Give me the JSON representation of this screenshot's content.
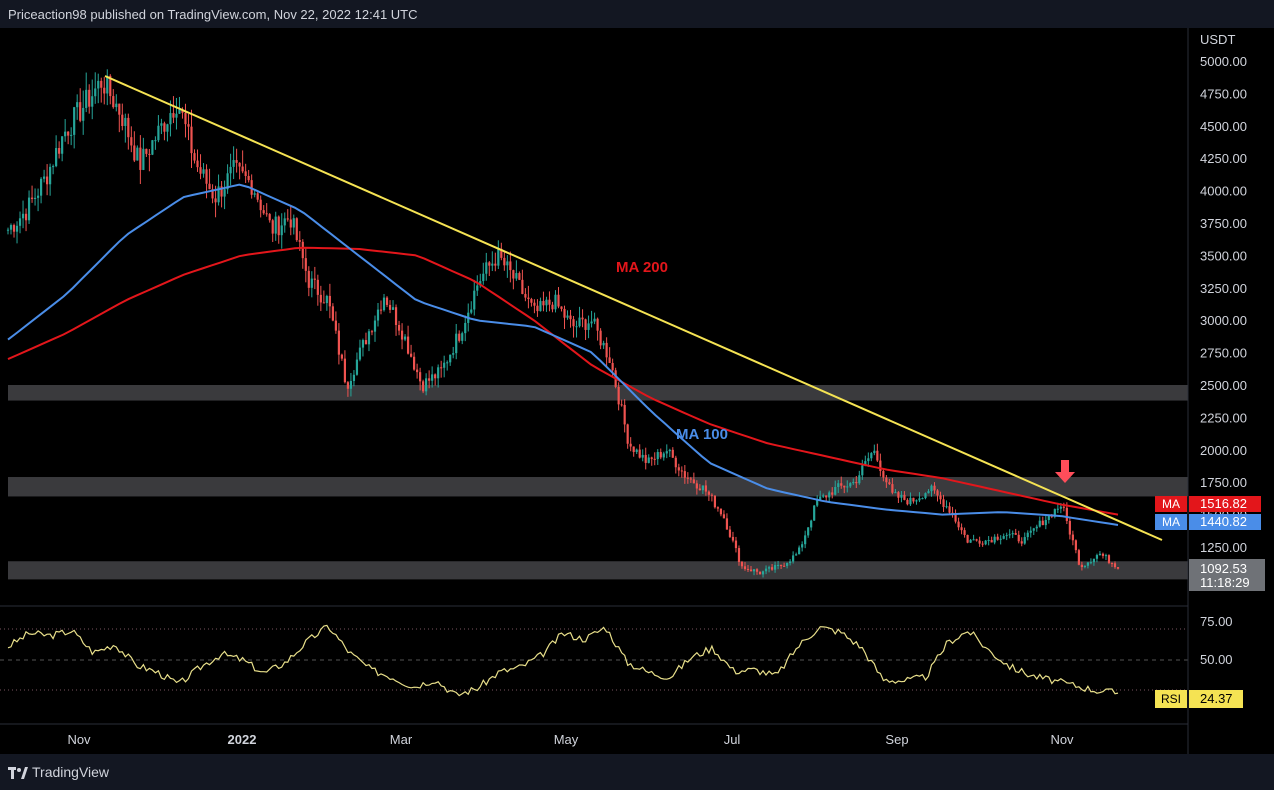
{
  "header": {
    "publisher": "Priceaction98 published on TradingView.com, Nov 22, 2022 12:41 UTC"
  },
  "footer": {
    "brand": "TradingView"
  },
  "chart_data": {
    "type": "candlestick",
    "currency": "USDT",
    "price_ticks": [
      "5000.00",
      "4750.00",
      "4500.00",
      "4250.00",
      "4000.00",
      "3750.00",
      "3500.00",
      "3250.00",
      "3000.00",
      "2750.00",
      "2500.00",
      "2250.00",
      "2000.00",
      "1750.00",
      "1500.00",
      "1250.00"
    ],
    "rsi_ticks": [
      "75.00",
      "50.00"
    ],
    "x_ticks": [
      "Nov",
      "2022",
      "Mar",
      "May",
      "Jul",
      "Sep",
      "Nov"
    ],
    "annotations": {
      "ma200_label": "MA 200",
      "ma100_label": "MA 100"
    },
    "ma200": {
      "label": "MA",
      "value": "1516.82",
      "color": "#e3161b"
    },
    "ma100": {
      "label": "MA",
      "value": "1440.82",
      "color": "#4a8de8"
    },
    "last_price": {
      "value": "1092.53",
      "countdown": "11:18:29"
    },
    "rsi": {
      "label": "RSI",
      "value": "24.37"
    },
    "trendline_color": "#f5e353",
    "zones": [
      [
        2380,
        2500
      ],
      [
        1640,
        1790
      ],
      [
        1000,
        1140
      ]
    ],
    "candles_close": [
      3700,
      3850,
      4100,
      4450,
      4650,
      4850,
      4600,
      4200,
      4450,
      4700,
      4200,
      3950,
      4150,
      4050,
      3700,
      3800,
      3300,
      3150,
      2500,
      2850,
      3200,
      2900,
      2500,
      2600,
      2900,
      3300,
      3500,
      3300,
      3050,
      3150,
      2950,
      3000,
      2700,
      2050,
      1900,
      2000,
      1800,
      1700,
      1500,
      1100,
      1050,
      1100,
      1200,
      1600,
      1700,
      1750,
      2000,
      1650,
      1600,
      1700,
      1550,
      1300,
      1300,
      1350,
      1300,
      1450,
      1580,
      1100,
      1200,
      1100
    ],
    "ma200_series": [
      2700,
      2900,
      3150,
      3350,
      3500,
      3560,
      3550,
      3500,
      3300,
      3000,
      2650,
      2400,
      2200,
      2050,
      1950,
      1850,
      1780,
      1680,
      1580,
      1500
    ],
    "ma100_series": [
      2850,
      3200,
      3650,
      3950,
      4050,
      3850,
      3500,
      3150,
      3000,
      2950,
      2750,
      2300,
      1900,
      1700,
      1600,
      1540,
      1500,
      1520,
      1490,
      1420
    ],
    "rsi_series": [
      61,
      72,
      70,
      74,
      56,
      63,
      46,
      40,
      30,
      44,
      55,
      50,
      39,
      48,
      65,
      78,
      56,
      42,
      36,
      28,
      34,
      21,
      27,
      40,
      44,
      54,
      72,
      67,
      77,
      48,
      40,
      36,
      52,
      60,
      41,
      42,
      37,
      61,
      77,
      73,
      60,
      34,
      33,
      36,
      64,
      74,
      57,
      44,
      37,
      33,
      29,
      25,
      23
    ]
  }
}
